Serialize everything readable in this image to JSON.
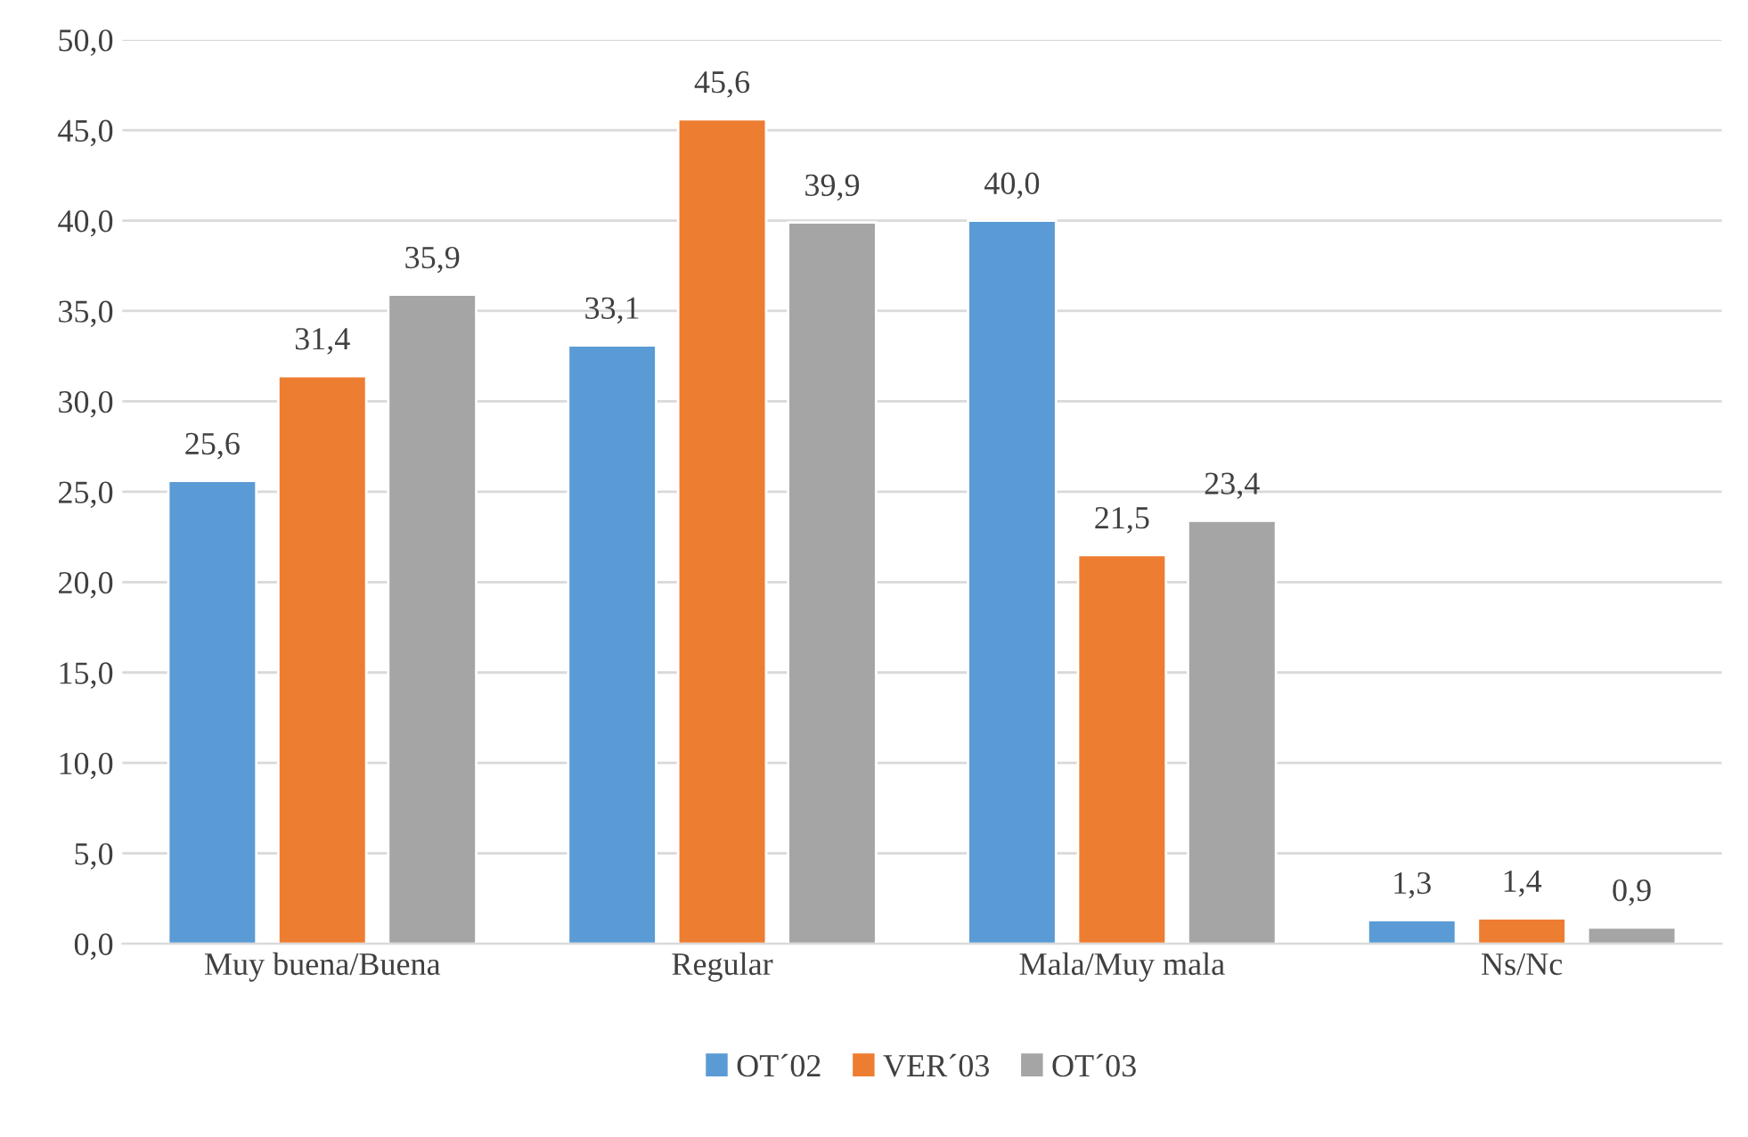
{
  "chart_data": {
    "type": "bar",
    "categories": [
      "Muy buena/Buena",
      "Regular",
      "Mala/Muy mala",
      "Ns/Nc"
    ],
    "series": [
      {
        "name": "OT´02",
        "color": "#5b9bd5",
        "values": [
          25.6,
          33.1,
          40.0,
          1.3
        ],
        "value_labels": [
          "25,6",
          "33,1",
          "40,0",
          "1,3"
        ]
      },
      {
        "name": "VER´03",
        "color": "#ed7d31",
        "values": [
          31.4,
          45.6,
          21.5,
          1.4
        ],
        "value_labels": [
          "31,4",
          "45,6",
          "21,5",
          "1,4"
        ]
      },
      {
        "name": "OT´03",
        "color": "#a5a5a5",
        "values": [
          35.9,
          39.9,
          23.4,
          0.9
        ],
        "value_labels": [
          "35,9",
          "39,9",
          "23,4",
          "0,9"
        ]
      }
    ],
    "ylim": [
      0,
      50
    ],
    "yticks": [
      {
        "value": 0,
        "label": "0,0"
      },
      {
        "value": 5,
        "label": "5,0"
      },
      {
        "value": 10,
        "label": "10,0"
      },
      {
        "value": 15,
        "label": "15,0"
      },
      {
        "value": 20,
        "label": "20,0"
      },
      {
        "value": 25,
        "label": "25,0"
      },
      {
        "value": 30,
        "label": "30,0"
      },
      {
        "value": 35,
        "label": "35,0"
      },
      {
        "value": 40,
        "label": "40,0"
      },
      {
        "value": 45,
        "label": "45,0"
      },
      {
        "value": 50,
        "label": "50,0"
      }
    ],
    "grid": "y",
    "legend": "bottom"
  }
}
